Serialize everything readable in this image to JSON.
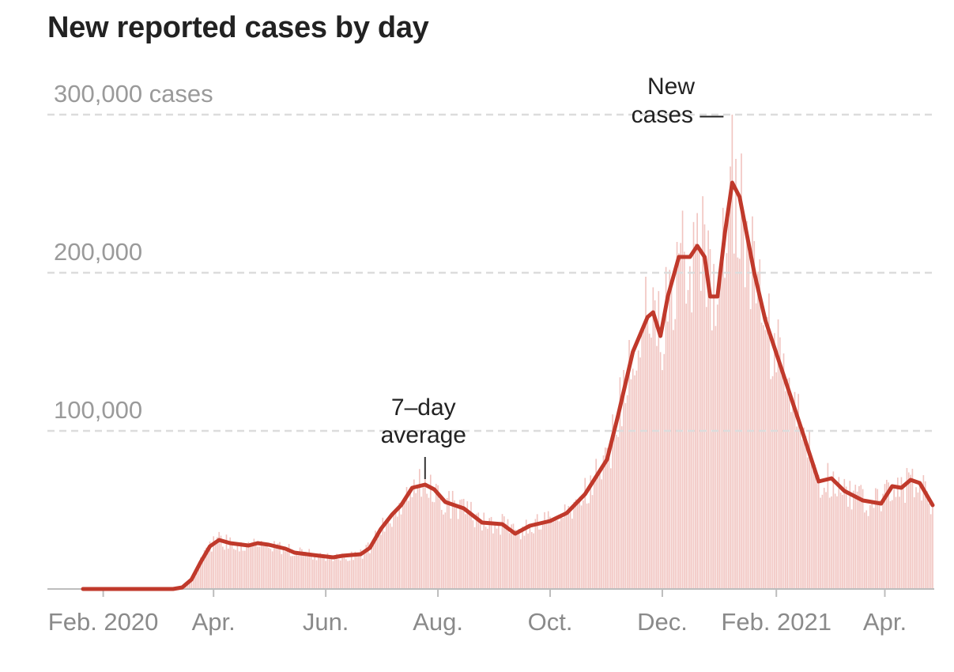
{
  "chart_data": {
    "type": "bar",
    "title": "New reported cases by day",
    "y_unit_label": "cases",
    "ylim": [
      0,
      300000
    ],
    "y_ticks": [
      {
        "value": 100000,
        "label": "100,000"
      },
      {
        "value": 200000,
        "label": "200,000"
      },
      {
        "value": 300000,
        "label": "300,000 cases"
      }
    ],
    "x_range": [
      "2020-01-21",
      "2021-04-27"
    ],
    "x_ticks": [
      {
        "date": "2020-02-01",
        "label": "Feb. 2020"
      },
      {
        "date": "2020-04-01",
        "label": "Apr."
      },
      {
        "date": "2020-06-01",
        "label": "Jun."
      },
      {
        "date": "2020-08-01",
        "label": "Aug."
      },
      {
        "date": "2020-10-01",
        "label": "Oct."
      },
      {
        "date": "2020-12-01",
        "label": "Dec."
      },
      {
        "date": "2021-02-01",
        "label": "Feb. 2021"
      },
      {
        "date": "2021-04-01",
        "label": "Apr."
      }
    ],
    "grid": "horizontal dashed",
    "series": [
      {
        "name": "New cases",
        "role": "daily bars",
        "color": "#f1c4c0",
        "values_from": "7-day average with daily variation",
        "peak": {
          "date": "2021-01-08",
          "value": 300000
        }
      },
      {
        "name": "7-day average",
        "role": "line",
        "color": "#c0392b",
        "points": [
          [
            "2020-01-21",
            0
          ],
          [
            "2020-03-01",
            0
          ],
          [
            "2020-03-10",
            0
          ],
          [
            "2020-03-15",
            1000
          ],
          [
            "2020-03-20",
            6000
          ],
          [
            "2020-03-25",
            17000
          ],
          [
            "2020-03-30",
            27000
          ],
          [
            "2020-04-04",
            31000
          ],
          [
            "2020-04-10",
            29000
          ],
          [
            "2020-04-20",
            27500
          ],
          [
            "2020-04-25",
            29000
          ],
          [
            "2020-05-01",
            28000
          ],
          [
            "2020-05-10",
            25500
          ],
          [
            "2020-05-15",
            23000
          ],
          [
            "2020-05-25",
            21500
          ],
          [
            "2020-06-05",
            20000
          ],
          [
            "2020-06-10",
            21000
          ],
          [
            "2020-06-20",
            22000
          ],
          [
            "2020-06-25",
            26000
          ],
          [
            "2020-07-01",
            38000
          ],
          [
            "2020-07-07",
            47000
          ],
          [
            "2020-07-12",
            53000
          ],
          [
            "2020-07-18",
            64000
          ],
          [
            "2020-07-25",
            66000
          ],
          [
            "2020-07-30",
            63000
          ],
          [
            "2020-08-05",
            55000
          ],
          [
            "2020-08-15",
            51000
          ],
          [
            "2020-08-25",
            42000
          ],
          [
            "2020-09-05",
            41000
          ],
          [
            "2020-09-12",
            35000
          ],
          [
            "2020-09-20",
            40000
          ],
          [
            "2020-10-01",
            43000
          ],
          [
            "2020-10-10",
            48000
          ],
          [
            "2020-10-20",
            60000
          ],
          [
            "2020-11-01",
            82000
          ],
          [
            "2020-11-07",
            110000
          ],
          [
            "2020-11-15",
            150000
          ],
          [
            "2020-11-23",
            172000
          ],
          [
            "2020-11-26",
            175000
          ],
          [
            "2020-11-30",
            160000
          ],
          [
            "2020-12-04",
            185000
          ],
          [
            "2020-12-10",
            210000
          ],
          [
            "2020-12-16",
            210000
          ],
          [
            "2020-12-20",
            217000
          ],
          [
            "2020-12-24",
            210000
          ],
          [
            "2020-12-27",
            185000
          ],
          [
            "2020-12-31",
            185000
          ],
          [
            "2021-01-04",
            225000
          ],
          [
            "2021-01-08",
            257000
          ],
          [
            "2021-01-12",
            248000
          ],
          [
            "2021-01-20",
            200000
          ],
          [
            "2021-01-26",
            170000
          ],
          [
            "2021-02-03",
            142000
          ],
          [
            "2021-02-15",
            100000
          ],
          [
            "2021-02-24",
            68000
          ],
          [
            "2021-03-03",
            70000
          ],
          [
            "2021-03-10",
            62000
          ],
          [
            "2021-03-20",
            56000
          ],
          [
            "2021-03-30",
            54000
          ],
          [
            "2021-04-05",
            65000
          ],
          [
            "2021-04-10",
            64000
          ],
          [
            "2021-04-15",
            69000
          ],
          [
            "2021-04-20",
            67000
          ],
          [
            "2021-04-27",
            53000
          ]
        ]
      }
    ],
    "annotations": [
      {
        "lines": [
          "7–day",
          "average"
        ],
        "target_date": "2020-07-25",
        "target_value": 66000
      },
      {
        "lines": [
          "New",
          "cases —"
        ],
        "target_date": "2021-01-08",
        "target_value": 300000
      }
    ]
  }
}
